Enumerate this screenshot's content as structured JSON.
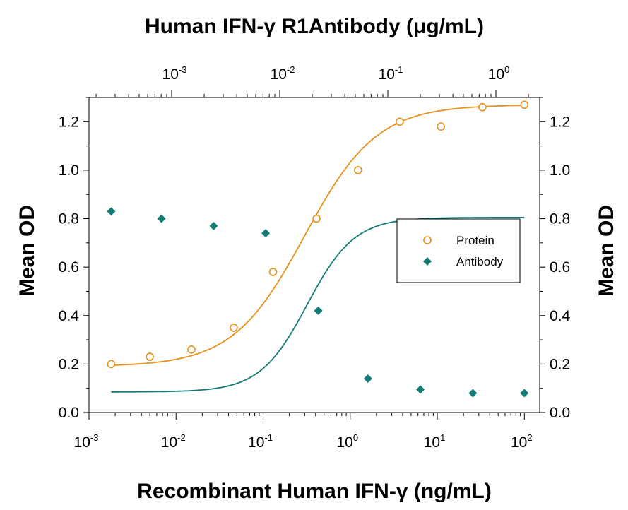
{
  "chart_data": {
    "type": "scatter",
    "title": "Human IFN-γ R1Antibody (μg/mL)",
    "xlabel": "Recombinant Human IFN-γ (ng/mL)",
    "ylabel": "Mean OD",
    "ylabel_right": "Mean OD",
    "x_scale": "log",
    "xlim": [
      0.001,
      150
    ],
    "ylim": [
      0.0,
      1.3
    ],
    "x_ticks": [
      {
        "value": 0.001,
        "base": "10",
        "exp": "-3"
      },
      {
        "value": 0.01,
        "base": "10",
        "exp": "-2"
      },
      {
        "value": 0.1,
        "base": "10",
        "exp": "-1"
      },
      {
        "value": 1,
        "base": "10",
        "exp": "0"
      },
      {
        "value": 10,
        "base": "10",
        "exp": "1"
      },
      {
        "value": 100,
        "base": "10",
        "exp": "2"
      }
    ],
    "top_ticks": [
      {
        "base": "10",
        "exp": "-3"
      },
      {
        "base": "10",
        "exp": "-2"
      },
      {
        "base": "10",
        "exp": "-1"
      },
      {
        "base": "10",
        "exp": "0"
      }
    ],
    "y_ticks": [
      "0.0",
      "0.2",
      "0.4",
      "0.6",
      "0.8",
      "1.0",
      "1.2"
    ],
    "grid": false,
    "legend_position": "right-middle",
    "series": [
      {
        "name": "Protein",
        "color": "#E8901C",
        "marker": "open-circle",
        "x": [
          0.0018,
          0.005,
          0.015,
          0.046,
          0.13,
          0.41,
          1.23,
          3.7,
          11,
          33,
          100
        ],
        "y": [
          0.2,
          0.23,
          0.26,
          0.35,
          0.58,
          0.8,
          1.0,
          1.2,
          1.18,
          1.26,
          1.27
        ]
      },
      {
        "name": "Antibody",
        "color": "#127C74",
        "marker": "filled-diamond",
        "x": [
          0.0018,
          0.0068,
          0.027,
          0.107,
          0.43,
          1.6,
          6.4,
          25.6,
          100
        ],
        "y": [
          0.83,
          0.8,
          0.77,
          0.74,
          0.42,
          0.14,
          0.095,
          0.08,
          0.08
        ]
      }
    ]
  }
}
